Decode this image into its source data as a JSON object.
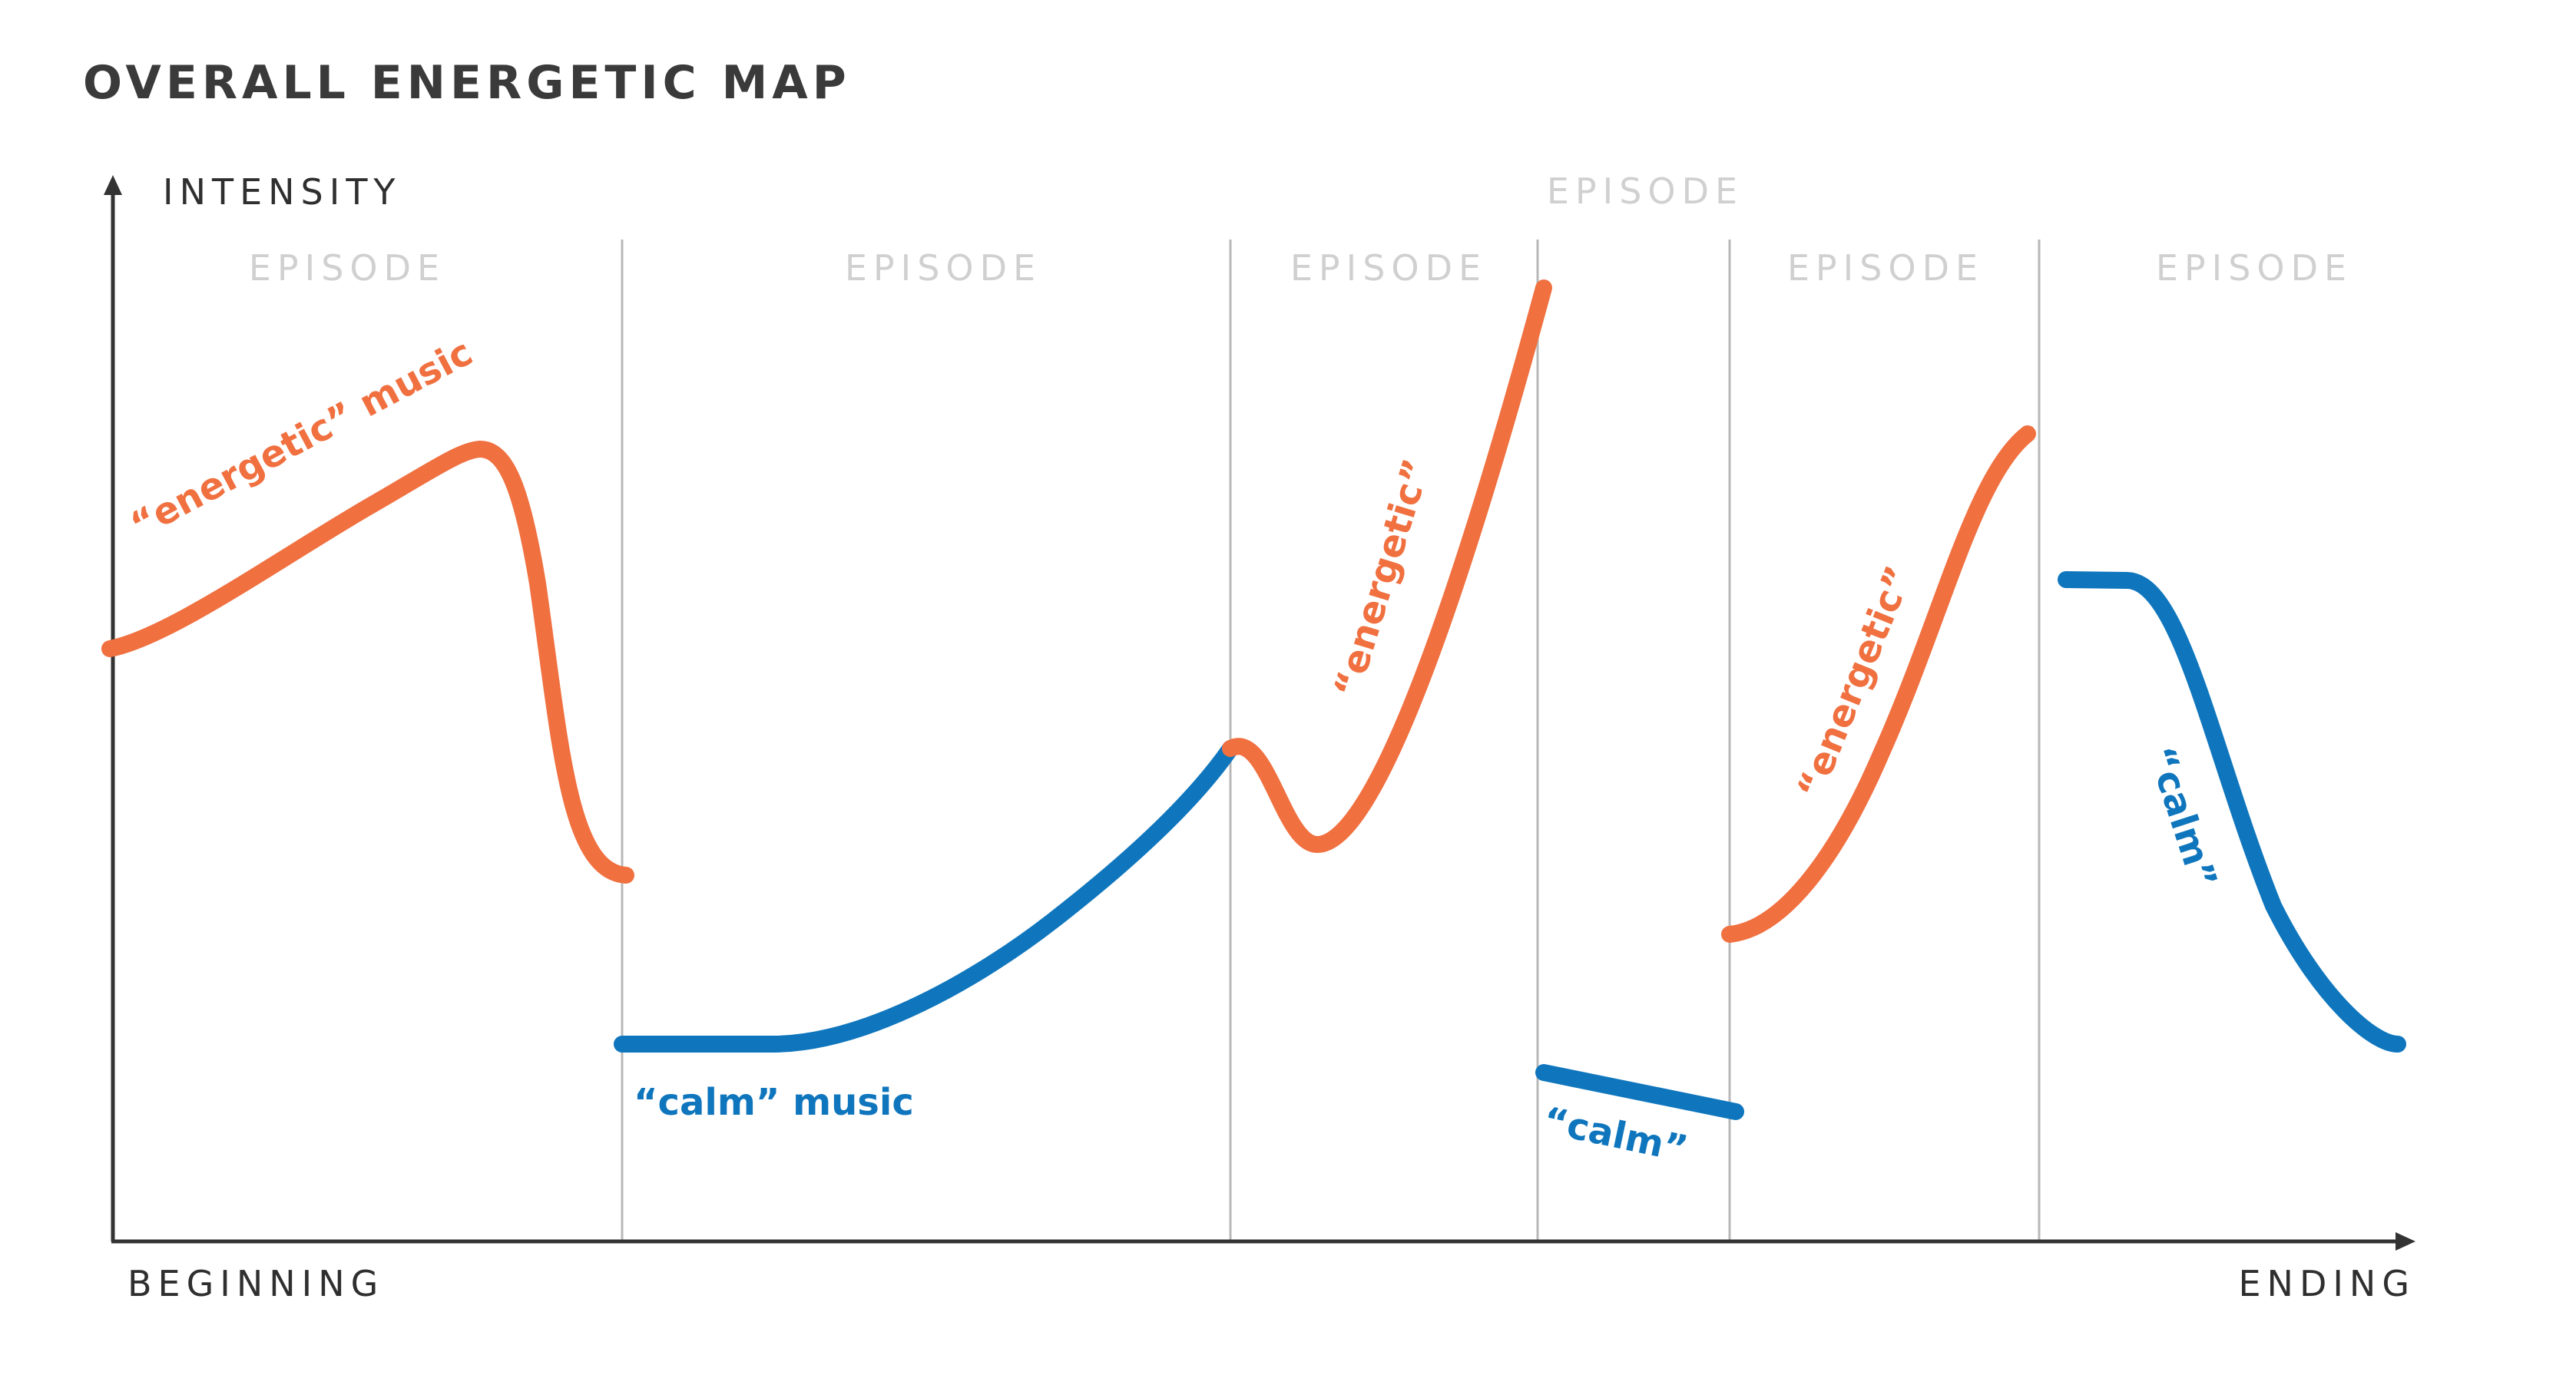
{
  "title": "OVERALL ENERGETIC MAP",
  "axes": {
    "y_label": "INTENSITY",
    "x_start_label": "BEGINNING",
    "x_end_label": "ENDING"
  },
  "episodes": [
    "EPISODE",
    "EPISODE",
    "EPISODE",
    "EPISODE",
    "EPISODE",
    "EPISODE"
  ],
  "colors": {
    "energetic": "#f07040",
    "calm": "#0f76bd",
    "axis": "#333333",
    "divider": "#b8b8b8",
    "episode_label": "#d0d0d0"
  },
  "annotations": {
    "energetic_music": "“energetic” music",
    "calm_music": "“calm” music",
    "energetic_2": "“energetic”",
    "calm_2": "“calm”",
    "energetic_3": "“energetic”",
    "calm_3": "“calm”"
  }
}
